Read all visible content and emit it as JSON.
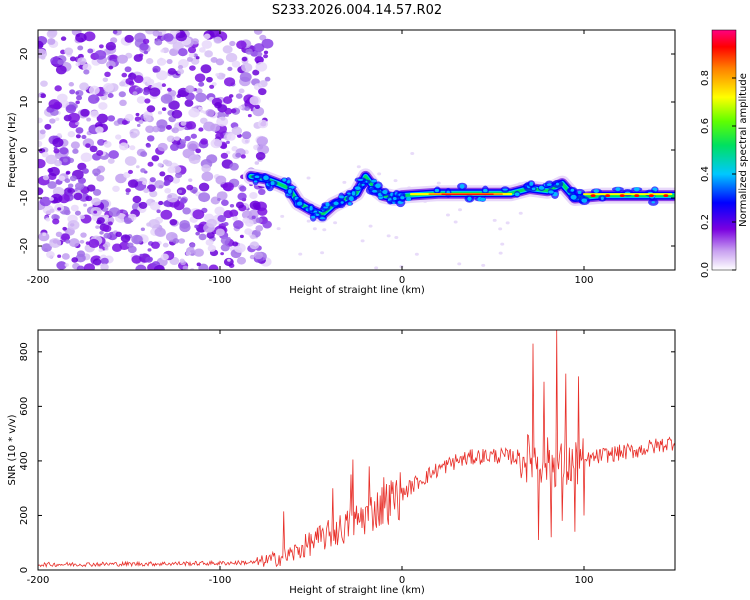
{
  "title": "S233.2026.004.14.57.R02",
  "colors": {
    "line": "#e8302a",
    "axis": "#000000",
    "background": "#ffffff"
  },
  "chart_data": [
    {
      "type": "heatmap",
      "name": "spectrogram",
      "xlabel": "Height of straight line (km)",
      "ylabel": "Frequency (Hz)",
      "xlim": [
        -200,
        150
      ],
      "ylim": [
        -25,
        25
      ],
      "xticks": [
        -200,
        -100,
        0,
        100
      ],
      "yticks": [
        -20,
        -10,
        0,
        10,
        20
      ],
      "noise_region_x": [
        -200,
        -80
      ],
      "ridge_points": [
        {
          "x": -83,
          "y": -5.5
        },
        {
          "x": -75,
          "y": -6
        },
        {
          "x": -68,
          "y": -7
        },
        {
          "x": -62,
          "y": -8
        },
        {
          "x": -57,
          "y": -11
        },
        {
          "x": -50,
          "y": -12.5
        },
        {
          "x": -44,
          "y": -13.5
        },
        {
          "x": -38,
          "y": -11.5
        },
        {
          "x": -30,
          "y": -10
        },
        {
          "x": -25,
          "y": -9
        },
        {
          "x": -20,
          "y": -5.5
        },
        {
          "x": -15,
          "y": -8
        },
        {
          "x": -10,
          "y": -9.5
        },
        {
          "x": -4,
          "y": -10
        },
        {
          "x": 0,
          "y": -9.5
        },
        {
          "x": 20,
          "y": -9
        },
        {
          "x": 40,
          "y": -9
        },
        {
          "x": 60,
          "y": -9
        },
        {
          "x": 70,
          "y": -8
        },
        {
          "x": 80,
          "y": -8.5
        },
        {
          "x": 88,
          "y": -7
        },
        {
          "x": 95,
          "y": -10
        },
        {
          "x": 110,
          "y": -9.5
        },
        {
          "x": 130,
          "y": -9.5
        },
        {
          "x": 150,
          "y": -9.5
        }
      ],
      "colorbar": {
        "label": "Normalized spectral amplitude",
        "range": [
          0,
          1
        ],
        "ticks": [
          0.0,
          0.2,
          0.4,
          0.6,
          0.8
        ],
        "tick_labels": [
          "0.0",
          "0.2",
          "0.4",
          "0.6",
          "0.8"
        ],
        "colormap": [
          "#ffffff",
          "#7a00e0",
          "#0000ff",
          "#00c8ff",
          "#00ff40",
          "#ffff00",
          "#ff8000",
          "#ff0000",
          "#ff0080"
        ]
      }
    },
    {
      "type": "line",
      "name": "snr",
      "xlabel": "Height of straight line (km)",
      "ylabel": "SNR (10 * v/v)",
      "xlim": [
        -200,
        150
      ],
      "ylim": [
        0,
        880
      ],
      "xticks": [
        -200,
        -100,
        0,
        100
      ],
      "yticks": [
        0,
        200,
        400,
        600,
        800
      ],
      "envelope": [
        {
          "x": -200,
          "y": 20
        },
        {
          "x": -150,
          "y": 22
        },
        {
          "x": -100,
          "y": 25
        },
        {
          "x": -80,
          "y": 28
        },
        {
          "x": -70,
          "y": 40
        },
        {
          "x": -60,
          "y": 60
        },
        {
          "x": -50,
          "y": 100
        },
        {
          "x": -40,
          "y": 130
        },
        {
          "x": -30,
          "y": 160
        },
        {
          "x": -20,
          "y": 200
        },
        {
          "x": -10,
          "y": 240
        },
        {
          "x": 0,
          "y": 280
        },
        {
          "x": 10,
          "y": 330
        },
        {
          "x": 20,
          "y": 370
        },
        {
          "x": 30,
          "y": 400
        },
        {
          "x": 40,
          "y": 415
        },
        {
          "x": 50,
          "y": 420
        },
        {
          "x": 60,
          "y": 415
        },
        {
          "x": 70,
          "y": 410
        },
        {
          "x": 80,
          "y": 400
        },
        {
          "x": 90,
          "y": 380
        },
        {
          "x": 100,
          "y": 400
        },
        {
          "x": 110,
          "y": 420
        },
        {
          "x": 120,
          "y": 430
        },
        {
          "x": 130,
          "y": 440
        },
        {
          "x": 140,
          "y": 455
        },
        {
          "x": 150,
          "y": 470
        }
      ],
      "spikes": [
        {
          "x": -65,
          "y": 215
        },
        {
          "x": -38,
          "y": 300
        },
        {
          "x": -28,
          "y": 350
        },
        {
          "x": -27,
          "y": 405
        },
        {
          "x": -18,
          "y": 380
        },
        {
          "x": -10,
          "y": 340
        },
        {
          "x": 72,
          "y": 830
        },
        {
          "x": 75,
          "y": 110
        },
        {
          "x": 78,
          "y": 690
        },
        {
          "x": 82,
          "y": 120
        },
        {
          "x": 85,
          "y": 880
        },
        {
          "x": 88,
          "y": 180
        },
        {
          "x": 90,
          "y": 720
        },
        {
          "x": 95,
          "y": 140
        },
        {
          "x": 97,
          "y": 710
        },
        {
          "x": 100,
          "y": 200
        }
      ]
    }
  ]
}
